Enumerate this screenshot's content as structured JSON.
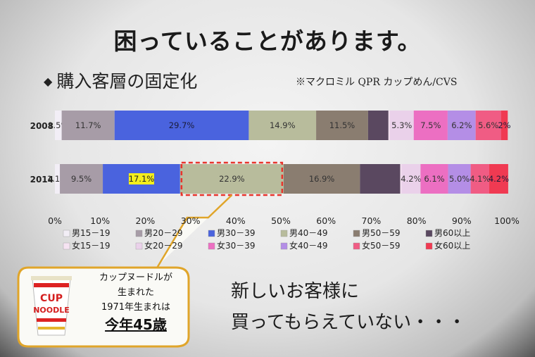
{
  "slide": {
    "title": "困っていることがあります。",
    "subtitle": "購入客層の固定化",
    "source": "※マクロミル QPR カップめん/CVS",
    "message": [
      "新しいお客様に",
      "買ってもらえていない・・・"
    ]
  },
  "callout": {
    "lines": [
      "カップヌードルが",
      "生まれた",
      "1971年生まれは"
    ],
    "emphasis": "今年45歳",
    "cup_logo_text": [
      "CUP",
      "NOODLE"
    ]
  },
  "chart_data": {
    "type": "bar",
    "orientation": "horizontal-stacked-100",
    "categories": [
      "2008",
      "2014"
    ],
    "xlim": [
      0,
      100
    ],
    "xticks": [
      "0%",
      "10%",
      "20%",
      "30%",
      "40%",
      "50%",
      "60%",
      "70%",
      "80%",
      "90%",
      "100%"
    ],
    "series": [
      {
        "name": "男15－19",
        "color": "#f2eef6",
        "values": [
          1.5,
          1.1
        ],
        "labels": [
          "1.5%",
          "1.1%"
        ]
      },
      {
        "name": "男20－29",
        "color": "#a79ca7",
        "values": [
          11.7,
          9.5
        ],
        "labels": [
          "11.7%",
          "9.5%"
        ]
      },
      {
        "name": "男30－39",
        "color": "#4a63de",
        "values": [
          29.7,
          17.1
        ],
        "labels": [
          "29.7%",
          "17.1%"
        ]
      },
      {
        "name": "男40－49",
        "color": "#b8bc9c",
        "values": [
          14.9,
          22.9
        ],
        "labels": [
          "14.9%",
          "22.9%"
        ]
      },
      {
        "name": "男50－59",
        "color": "#8a7d70",
        "values": [
          11.5,
          16.9
        ],
        "labels": [
          "11.5%",
          "16.9%"
        ]
      },
      {
        "name": "男60以上",
        "color": "#5a4860",
        "values": [
          4.5,
          8.9
        ],
        "labels": [
          "",
          ""
        ]
      },
      {
        "name": "女15－19",
        "color": "#f6e3f2",
        "values": [
          0.3,
          0.3
        ],
        "labels": [
          "",
          ""
        ]
      },
      {
        "name": "女20－29",
        "color": "#ead1ea",
        "values": [
          5.3,
          4.2
        ],
        "labels": [
          "5.3%",
          "4.2%"
        ]
      },
      {
        "name": "女30－39",
        "color": "#ec6fc2",
        "values": [
          7.5,
          6.1
        ],
        "labels": [
          "7.5%",
          "6.1%"
        ]
      },
      {
        "name": "女40－49",
        "color": "#b48ee6",
        "values": [
          6.2,
          5.0
        ],
        "labels": [
          "6.2%",
          "5.0%"
        ]
      },
      {
        "name": "女50－59",
        "color": "#f05c84",
        "values": [
          5.6,
          4.1
        ],
        "labels": [
          "5.6%",
          "4.1%"
        ]
      },
      {
        "name": "女60以上",
        "color": "#f03a52",
        "values": [
          1.5,
          4.2
        ],
        "labels": [
          "2%",
          "4.2%"
        ]
      }
    ],
    "highlights": [
      {
        "category": "2014",
        "series": "男30－39",
        "style": "yellow-label"
      },
      {
        "category": "2014",
        "series": "男40－49",
        "style": "red-dashed-box"
      }
    ],
    "legend_placement": "bottom"
  }
}
